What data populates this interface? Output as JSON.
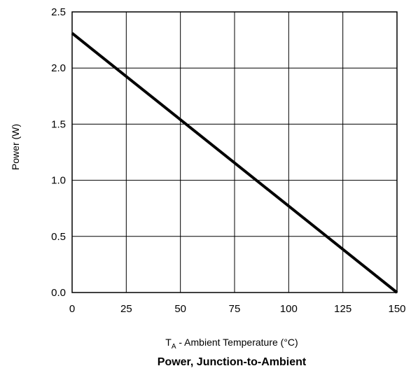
{
  "chart_data": {
    "type": "line",
    "title": "Power, Junction-to-Ambient",
    "xlabel": {
      "main": "T",
      "sub": "A",
      "rest": " - Ambient Temperature (°C)"
    },
    "ylabel": "Power (W)",
    "xlim": [
      0,
      150
    ],
    "ylim": [
      0,
      2.5
    ],
    "xticks": [
      "0",
      "25",
      "50",
      "75",
      "100",
      "125",
      "150"
    ],
    "yticks": [
      "0.0",
      "0.5",
      "1.0",
      "1.5",
      "2.0",
      "2.5"
    ],
    "grid": true,
    "series": [
      {
        "x": [
          0,
          150
        ],
        "y": [
          2.31,
          0.0
        ]
      }
    ],
    "line_color": "#000000"
  }
}
